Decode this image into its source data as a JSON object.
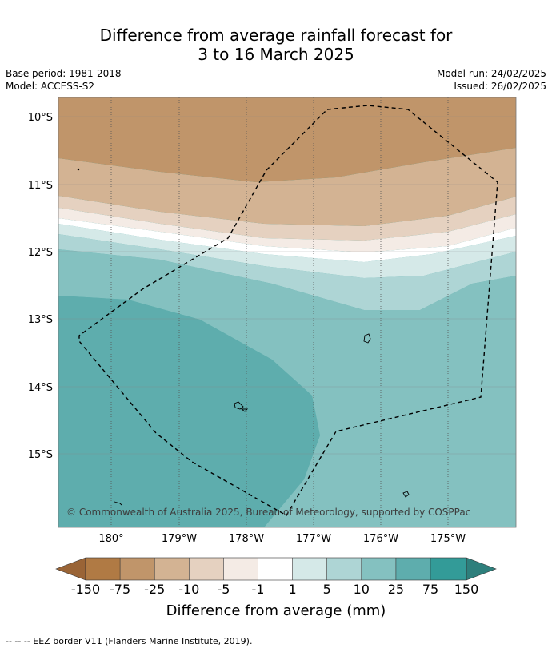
{
  "title_line1": "Difference from average rainfall forecast for",
  "title_line2": "3 to 16 March 2025",
  "meta": {
    "base_period": "Base period: 1981-2018",
    "model": "Model: ACCESS-S2",
    "model_run": "Model run: 24/02/2025",
    "issued": "Issued: 26/02/2025"
  },
  "map": {
    "lat_labels": [
      "10°S",
      "11°S",
      "12°S",
      "13°S",
      "14°S",
      "15°S"
    ],
    "lon_labels": [
      "180°",
      "179°W",
      "178°W",
      "177°W",
      "176°W",
      "175°W"
    ],
    "copyright": "© Commonwealth of Australia 2025, Bureau of Meteorology, supported by COSPPac"
  },
  "colorbar": {
    "labels": [
      "-150",
      "-75",
      "-25",
      "-10",
      "-5",
      "-1",
      "1",
      "5",
      "10",
      "25",
      "75",
      "150"
    ],
    "colors": {
      "lt_-150": "#9a6436",
      "-150_-75": "#b07a44",
      "-75_-25": "#c0956a",
      "-25_-10": "#d3b393",
      "-10_-5": "#e5d1c0",
      "-5_-1": "#f4ebe5",
      "-1_1": "#ffffff",
      "1_5": "#d5e9e8",
      "5_10": "#aed5d5",
      "10_25": "#84c1c0",
      "25_75": "#5eadad",
      "75_150": "#339b98",
      "gt_150": "#2e7f7c"
    },
    "title": "Difference from average (mm)"
  },
  "footer": "--  --  -- EEZ border V11 (Flanders Marine Institute, 2019)."
}
